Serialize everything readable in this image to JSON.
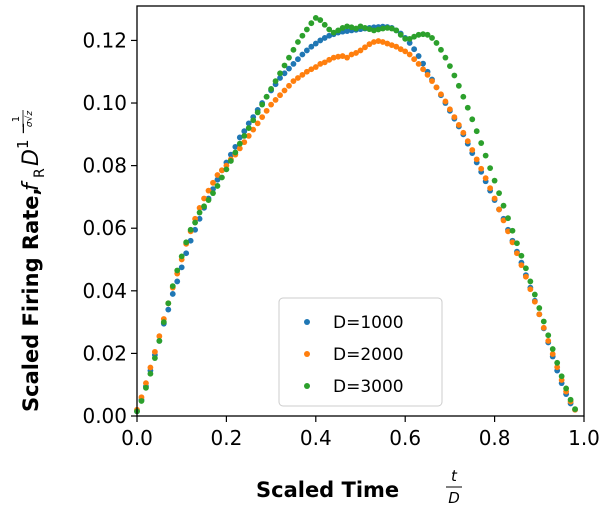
{
  "chart_data": {
    "type": "scatter",
    "title": "",
    "xlabel_prefix": "Scaled Time",
    "xlabel_frac_num": "t",
    "xlabel_frac_den": "D",
    "ylabel_prefix": "Scaled Firing Rate,",
    "ylabel_f": "f",
    "ylabel_sub": "R",
    "ylabel_D": "D",
    "ylabel_exp_lead": "1 −",
    "ylabel_exp_num": "1",
    "ylabel_exp_den": "σ√z",
    "xlim": [
      0.0,
      1.0
    ],
    "ylim": [
      0.0,
      0.131
    ],
    "x_ticks": [
      0.0,
      0.2,
      0.4,
      0.6,
      0.8,
      1.0
    ],
    "x_tick_labels": [
      "0.0",
      "0.2",
      "0.4",
      "0.6",
      "0.8",
      "1.0"
    ],
    "y_ticks": [
      0.0,
      0.02,
      0.04,
      0.06,
      0.08,
      0.1,
      0.12
    ],
    "y_tick_labels": [
      "0.00",
      "0.02",
      "0.04",
      "0.06",
      "0.08",
      "0.10",
      "0.12"
    ],
    "grid": false,
    "legend_position": "lower-center",
    "series": [
      {
        "name": "D=1000",
        "color": "#1f77b4",
        "points": [
          [
            0.0,
            0.0015
          ],
          [
            0.01,
            0.0052
          ],
          [
            0.02,
            0.0095
          ],
          [
            0.03,
            0.0145
          ],
          [
            0.04,
            0.0195
          ],
          [
            0.05,
            0.024
          ],
          [
            0.06,
            0.0295
          ],
          [
            0.07,
            0.034
          ],
          [
            0.08,
            0.039
          ],
          [
            0.09,
            0.043
          ],
          [
            0.1,
            0.0475
          ],
          [
            0.11,
            0.052
          ],
          [
            0.12,
            0.056
          ],
          [
            0.13,
            0.0595
          ],
          [
            0.14,
            0.063
          ],
          [
            0.15,
            0.0665
          ],
          [
            0.16,
            0.0695
          ],
          [
            0.17,
            0.0725
          ],
          [
            0.18,
            0.0755
          ],
          [
            0.19,
            0.0785
          ],
          [
            0.2,
            0.081
          ],
          [
            0.21,
            0.0835
          ],
          [
            0.22,
            0.086
          ],
          [
            0.23,
            0.089
          ],
          [
            0.24,
            0.091
          ],
          [
            0.25,
            0.0935
          ],
          [
            0.26,
            0.0955
          ],
          [
            0.27,
            0.0978
          ],
          [
            0.28,
            0.1
          ],
          [
            0.29,
            0.102
          ],
          [
            0.3,
            0.104
          ],
          [
            0.31,
            0.106
          ],
          [
            0.32,
            0.108
          ],
          [
            0.33,
            0.1095
          ],
          [
            0.34,
            0.111
          ],
          [
            0.35,
            0.1125
          ],
          [
            0.36,
            0.114
          ],
          [
            0.37,
            0.1155
          ],
          [
            0.38,
            0.1168
          ],
          [
            0.39,
            0.118
          ],
          [
            0.4,
            0.119
          ],
          [
            0.41,
            0.12
          ],
          [
            0.42,
            0.1208
          ],
          [
            0.43,
            0.1215
          ],
          [
            0.44,
            0.122
          ],
          [
            0.45,
            0.1225
          ],
          [
            0.46,
            0.1228
          ],
          [
            0.47,
            0.123
          ],
          [
            0.48,
            0.1232
          ],
          [
            0.49,
            0.1234
          ],
          [
            0.5,
            0.1236
          ],
          [
            0.51,
            0.1238
          ],
          [
            0.52,
            0.124
          ],
          [
            0.53,
            0.1242
          ],
          [
            0.54,
            0.1243
          ],
          [
            0.55,
            0.1244
          ],
          [
            0.56,
            0.1243
          ],
          [
            0.57,
            0.124
          ],
          [
            0.58,
            0.1232
          ],
          [
            0.59,
            0.1222
          ],
          [
            0.6,
            0.1208
          ],
          [
            0.61,
            0.1192
          ],
          [
            0.62,
            0.1172
          ],
          [
            0.63,
            0.115
          ],
          [
            0.64,
            0.1126
          ],
          [
            0.65,
            0.11
          ],
          [
            0.66,
            0.1075
          ],
          [
            0.67,
            0.105
          ],
          [
            0.68,
            0.1025
          ],
          [
            0.69,
            0.1
          ],
          [
            0.7,
            0.0975
          ],
          [
            0.71,
            0.095
          ],
          [
            0.72,
            0.0925
          ],
          [
            0.73,
            0.09
          ],
          [
            0.74,
            0.087
          ],
          [
            0.75,
            0.084
          ],
          [
            0.76,
            0.081
          ],
          [
            0.77,
            0.078
          ],
          [
            0.78,
            0.075
          ],
          [
            0.79,
            0.072
          ],
          [
            0.8,
            0.069
          ],
          [
            0.81,
            0.066
          ],
          [
            0.82,
            0.063
          ],
          [
            0.83,
            0.0595
          ],
          [
            0.84,
            0.056
          ],
          [
            0.85,
            0.0525
          ],
          [
            0.86,
            0.049
          ],
          [
            0.87,
            0.045
          ],
          [
            0.88,
            0.041
          ],
          [
            0.89,
            0.0368
          ],
          [
            0.9,
            0.0325
          ],
          [
            0.91,
            0.028
          ],
          [
            0.92,
            0.0235
          ],
          [
            0.93,
            0.019
          ],
          [
            0.94,
            0.0145
          ],
          [
            0.95,
            0.0105
          ],
          [
            0.96,
            0.007
          ],
          [
            0.97,
            0.004
          ],
          [
            0.98,
            0.002
          ]
        ]
      },
      {
        "name": "D=2000",
        "color": "#ff7f0e",
        "points": [
          [
            0.0,
            0.002
          ],
          [
            0.01,
            0.006
          ],
          [
            0.02,
            0.0105
          ],
          [
            0.03,
            0.0155
          ],
          [
            0.04,
            0.0205
          ],
          [
            0.05,
            0.0255
          ],
          [
            0.06,
            0.031
          ],
          [
            0.07,
            0.036
          ],
          [
            0.08,
            0.041
          ],
          [
            0.09,
            0.0455
          ],
          [
            0.1,
            0.05
          ],
          [
            0.11,
            0.055
          ],
          [
            0.12,
            0.059
          ],
          [
            0.13,
            0.063
          ],
          [
            0.14,
            0.0665
          ],
          [
            0.15,
            0.0695
          ],
          [
            0.16,
            0.072
          ],
          [
            0.17,
            0.0745
          ],
          [
            0.18,
            0.077
          ],
          [
            0.19,
            0.0785
          ],
          [
            0.2,
            0.08
          ],
          [
            0.21,
            0.082
          ],
          [
            0.22,
            0.0835
          ],
          [
            0.23,
            0.0855
          ],
          [
            0.24,
            0.0875
          ],
          [
            0.25,
            0.0895
          ],
          [
            0.26,
            0.0915
          ],
          [
            0.27,
            0.0935
          ],
          [
            0.28,
            0.0955
          ],
          [
            0.29,
            0.0975
          ],
          [
            0.3,
            0.0995
          ],
          [
            0.31,
            0.101
          ],
          [
            0.32,
            0.1025
          ],
          [
            0.33,
            0.104
          ],
          [
            0.34,
            0.1055
          ],
          [
            0.35,
            0.107
          ],
          [
            0.36,
            0.108
          ],
          [
            0.37,
            0.109
          ],
          [
            0.38,
            0.11
          ],
          [
            0.39,
            0.1108
          ],
          [
            0.4,
            0.1115
          ],
          [
            0.41,
            0.1125
          ],
          [
            0.42,
            0.113
          ],
          [
            0.43,
            0.1138
          ],
          [
            0.44,
            0.1145
          ],
          [
            0.45,
            0.1148
          ],
          [
            0.46,
            0.115
          ],
          [
            0.47,
            0.1145
          ],
          [
            0.48,
            0.1155
          ],
          [
            0.49,
            0.116
          ],
          [
            0.5,
            0.1168
          ],
          [
            0.51,
            0.1178
          ],
          [
            0.52,
            0.1188
          ],
          [
            0.53,
            0.1195
          ],
          [
            0.54,
            0.1198
          ],
          [
            0.55,
            0.1195
          ],
          [
            0.56,
            0.119
          ],
          [
            0.57,
            0.1185
          ],
          [
            0.58,
            0.118
          ],
          [
            0.59,
            0.1172
          ],
          [
            0.6,
            0.1165
          ],
          [
            0.61,
            0.1155
          ],
          [
            0.62,
            0.114
          ],
          [
            0.63,
            0.1125
          ],
          [
            0.64,
            0.1108
          ],
          [
            0.65,
            0.109
          ],
          [
            0.66,
            0.107
          ],
          [
            0.67,
            0.105
          ],
          [
            0.68,
            0.1028
          ],
          [
            0.69,
            0.1005
          ],
          [
            0.7,
            0.098
          ],
          [
            0.71,
            0.0955
          ],
          [
            0.72,
            0.093
          ],
          [
            0.73,
            0.0905
          ],
          [
            0.74,
            0.0878
          ],
          [
            0.75,
            0.085
          ],
          [
            0.76,
            0.082
          ],
          [
            0.77,
            0.079
          ],
          [
            0.78,
            0.076
          ],
          [
            0.79,
            0.0728
          ],
          [
            0.8,
            0.0695
          ],
          [
            0.81,
            0.066
          ],
          [
            0.82,
            0.0625
          ],
          [
            0.83,
            0.059
          ],
          [
            0.84,
            0.0555
          ],
          [
            0.85,
            0.052
          ],
          [
            0.86,
            0.0482
          ],
          [
            0.87,
            0.0445
          ],
          [
            0.88,
            0.0405
          ],
          [
            0.89,
            0.0365
          ],
          [
            0.9,
            0.0325
          ],
          [
            0.91,
            0.0282
          ],
          [
            0.92,
            0.024
          ],
          [
            0.93,
            0.0198
          ],
          [
            0.94,
            0.0156
          ],
          [
            0.95,
            0.0115
          ],
          [
            0.96,
            0.0078
          ],
          [
            0.97,
            0.0046
          ],
          [
            0.98,
            0.002
          ]
        ]
      },
      {
        "name": "D=3000",
        "color": "#2ca02c",
        "points": [
          [
            0.0,
            0.0015
          ],
          [
            0.01,
            0.0048
          ],
          [
            0.02,
            0.009
          ],
          [
            0.03,
            0.0135
          ],
          [
            0.04,
            0.0185
          ],
          [
            0.05,
            0.024
          ],
          [
            0.06,
            0.03
          ],
          [
            0.07,
            0.036
          ],
          [
            0.08,
            0.0415
          ],
          [
            0.09,
            0.0465
          ],
          [
            0.1,
            0.051
          ],
          [
            0.11,
            0.0555
          ],
          [
            0.12,
            0.0595
          ],
          [
            0.13,
            0.0618
          ],
          [
            0.14,
            0.065
          ],
          [
            0.15,
            0.067
          ],
          [
            0.16,
            0.069
          ],
          [
            0.17,
            0.0712
          ],
          [
            0.18,
            0.0735
          ],
          [
            0.19,
            0.0762
          ],
          [
            0.2,
            0.0788
          ],
          [
            0.21,
            0.0815
          ],
          [
            0.22,
            0.0842
          ],
          [
            0.23,
            0.087
          ],
          [
            0.24,
            0.0895
          ],
          [
            0.25,
            0.092
          ],
          [
            0.26,
            0.0945
          ],
          [
            0.27,
            0.097
          ],
          [
            0.28,
            0.0995
          ],
          [
            0.29,
            0.102
          ],
          [
            0.3,
            0.1045
          ],
          [
            0.31,
            0.107
          ],
          [
            0.32,
            0.1095
          ],
          [
            0.33,
            0.112
          ],
          [
            0.34,
            0.1145
          ],
          [
            0.35,
            0.117
          ],
          [
            0.36,
            0.1195
          ],
          [
            0.37,
            0.1215
          ],
          [
            0.38,
            0.1235
          ],
          [
            0.39,
            0.1255
          ],
          [
            0.4,
            0.1272
          ],
          [
            0.41,
            0.1265
          ],
          [
            0.42,
            0.125
          ],
          [
            0.43,
            0.1235
          ],
          [
            0.44,
            0.1225
          ],
          [
            0.45,
            0.1232
          ],
          [
            0.46,
            0.124
          ],
          [
            0.47,
            0.1245
          ],
          [
            0.48,
            0.1242
          ],
          [
            0.49,
            0.1238
          ],
          [
            0.5,
            0.1245
          ],
          [
            0.51,
            0.124
          ],
          [
            0.52,
            0.1236
          ],
          [
            0.53,
            0.1232
          ],
          [
            0.54,
            0.1235
          ],
          [
            0.55,
            0.1238
          ],
          [
            0.56,
            0.124
          ],
          [
            0.57,
            0.1238
          ],
          [
            0.58,
            0.1232
          ],
          [
            0.59,
            0.1218
          ],
          [
            0.6,
            0.1205
          ],
          [
            0.61,
            0.1205
          ],
          [
            0.62,
            0.1212
          ],
          [
            0.63,
            0.1218
          ],
          [
            0.64,
            0.122
          ],
          [
            0.65,
            0.1218
          ],
          [
            0.66,
            0.1208
          ],
          [
            0.67,
            0.1192
          ],
          [
            0.68,
            0.117
          ],
          [
            0.69,
            0.1145
          ],
          [
            0.7,
            0.1118
          ],
          [
            0.71,
            0.1088
          ],
          [
            0.72,
            0.1055
          ],
          [
            0.73,
            0.102
          ],
          [
            0.74,
            0.0985
          ],
          [
            0.75,
            0.0948
          ],
          [
            0.76,
            0.091
          ],
          [
            0.77,
            0.0872
          ],
          [
            0.78,
            0.0832
          ],
          [
            0.79,
            0.0792
          ],
          [
            0.8,
            0.0752
          ],
          [
            0.81,
            0.0712
          ],
          [
            0.82,
            0.0672
          ],
          [
            0.83,
            0.0632
          ],
          [
            0.84,
            0.0592
          ],
          [
            0.85,
            0.0552
          ],
          [
            0.86,
            0.0512
          ],
          [
            0.87,
            0.0472
          ],
          [
            0.88,
            0.043
          ],
          [
            0.89,
            0.0388
          ],
          [
            0.9,
            0.0345
          ],
          [
            0.91,
            0.0302
          ],
          [
            0.92,
            0.0258
          ],
          [
            0.93,
            0.0214
          ],
          [
            0.94,
            0.017
          ],
          [
            0.95,
            0.0127
          ],
          [
            0.96,
            0.0088
          ],
          [
            0.97,
            0.0052
          ],
          [
            0.98,
            0.0022
          ]
        ]
      }
    ]
  }
}
